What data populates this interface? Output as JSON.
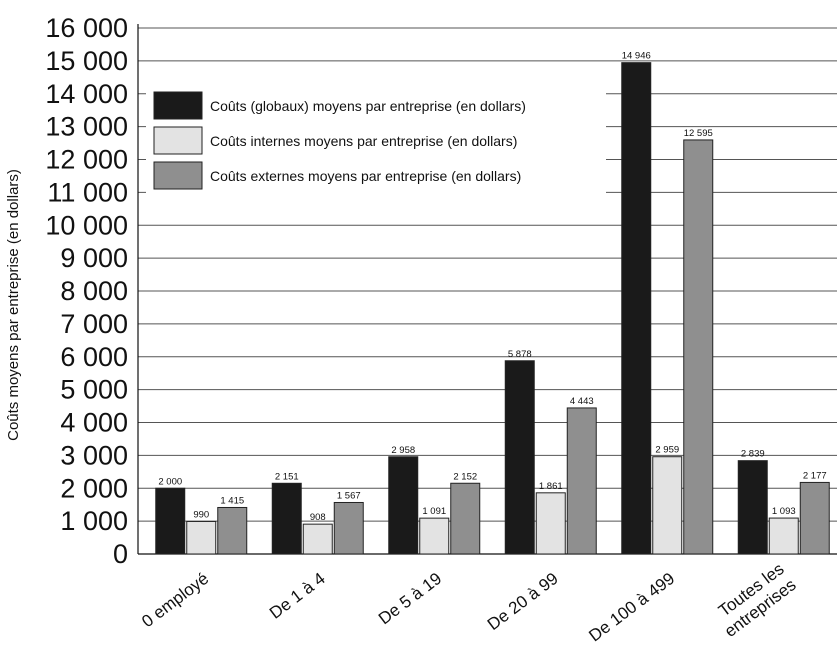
{
  "chart_data": {
    "type": "bar",
    "title": "",
    "xlabel": "",
    "ylabel": "Coûts moyens par entreprise (en dollars)",
    "ylim": [
      0,
      16000
    ],
    "yticks": [
      0,
      1000,
      2000,
      3000,
      4000,
      5000,
      6000,
      7000,
      8000,
      9000,
      10000,
      11000,
      12000,
      13000,
      14000,
      15000,
      16000
    ],
    "ytick_labels": [
      "0",
      "1 000",
      "2 000",
      "3 000",
      "4 000",
      "5 000",
      "6 000",
      "7 000",
      "8 000",
      "9 000",
      "10 000",
      "11 000",
      "12 000",
      "13 000",
      "14 000",
      "15 000",
      "16 000"
    ],
    "grid": true,
    "legend_position": "top-left",
    "categories": [
      "0 employé",
      "De 1 à 4",
      "De 5 à 19",
      "De 20 à 99",
      "De 100 à 499",
      "Toutes les\nentreprises"
    ],
    "series": [
      {
        "name": "Coûts (globaux) moyens par entreprise (en dollars)",
        "color": "#1a1a1a",
        "values": [
          2000,
          2151,
          2958,
          5878,
          14946,
          2839
        ],
        "labels": [
          "2 000",
          "2 151",
          "2 958",
          "5 878",
          "14 946",
          "2 839"
        ]
      },
      {
        "name": "Coûts internes moyens par entreprise (en dollars)",
        "color": "#e3e3e3",
        "values": [
          990,
          908,
          1091,
          1861,
          2959,
          1093
        ],
        "labels": [
          "990",
          "908",
          "1 091",
          "1 861",
          "2 959",
          "1 093"
        ]
      },
      {
        "name": "Coûts externes moyens par entreprise (en dollars)",
        "color": "#8f8f8f",
        "values": [
          1415,
          1567,
          2152,
          4443,
          12595,
          2177
        ],
        "labels": [
          "1 415",
          "1 567",
          "2 152",
          "4 443",
          "12 595",
          "2 177"
        ]
      }
    ]
  }
}
